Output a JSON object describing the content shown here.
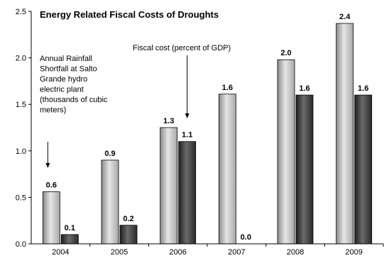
{
  "chart_data": {
    "type": "bar",
    "title": "Energy Related Fiscal Costs of Droughts",
    "xlabel": "",
    "ylabel": "",
    "ylim": [
      0,
      2.5
    ],
    "yticks": [
      "0.0",
      "0.5",
      "1.0",
      "1.5",
      "2.0",
      "2.5"
    ],
    "grid": false,
    "categories": [
      "2004",
      "2005",
      "2006",
      "2007",
      "2008",
      "2009"
    ],
    "series": [
      {
        "name": "Annual Rainfall Shortfall at Salto Grande hydro electric plant (thousands of cubic meters)",
        "color": "#b4b4b4",
        "values": [
          0.56,
          0.9,
          1.25,
          1.61,
          1.98,
          2.37
        ],
        "labels": [
          "0.6",
          "0.9",
          "1.3",
          "1.6",
          "2.0",
          "2.4"
        ]
      },
      {
        "name": "Fiscal cost (percent of GDP)",
        "color": "#3c3c3c",
        "values": [
          0.1,
          0.2,
          1.1,
          0.0,
          1.6,
          1.6
        ],
        "labels": [
          "0.1",
          "0.2",
          "1.1",
          "0.0",
          "1.6",
          "1.6"
        ]
      }
    ],
    "annotations": {
      "rainfall_lines": [
        "Annual Rainfall",
        "Shortfall at Salto",
        "Grande hydro",
        "electric plant",
        "(thousands of cubic",
        "meters)"
      ],
      "fiscal_lines": [
        "Fiscal cost (percent of GDP)"
      ]
    }
  }
}
